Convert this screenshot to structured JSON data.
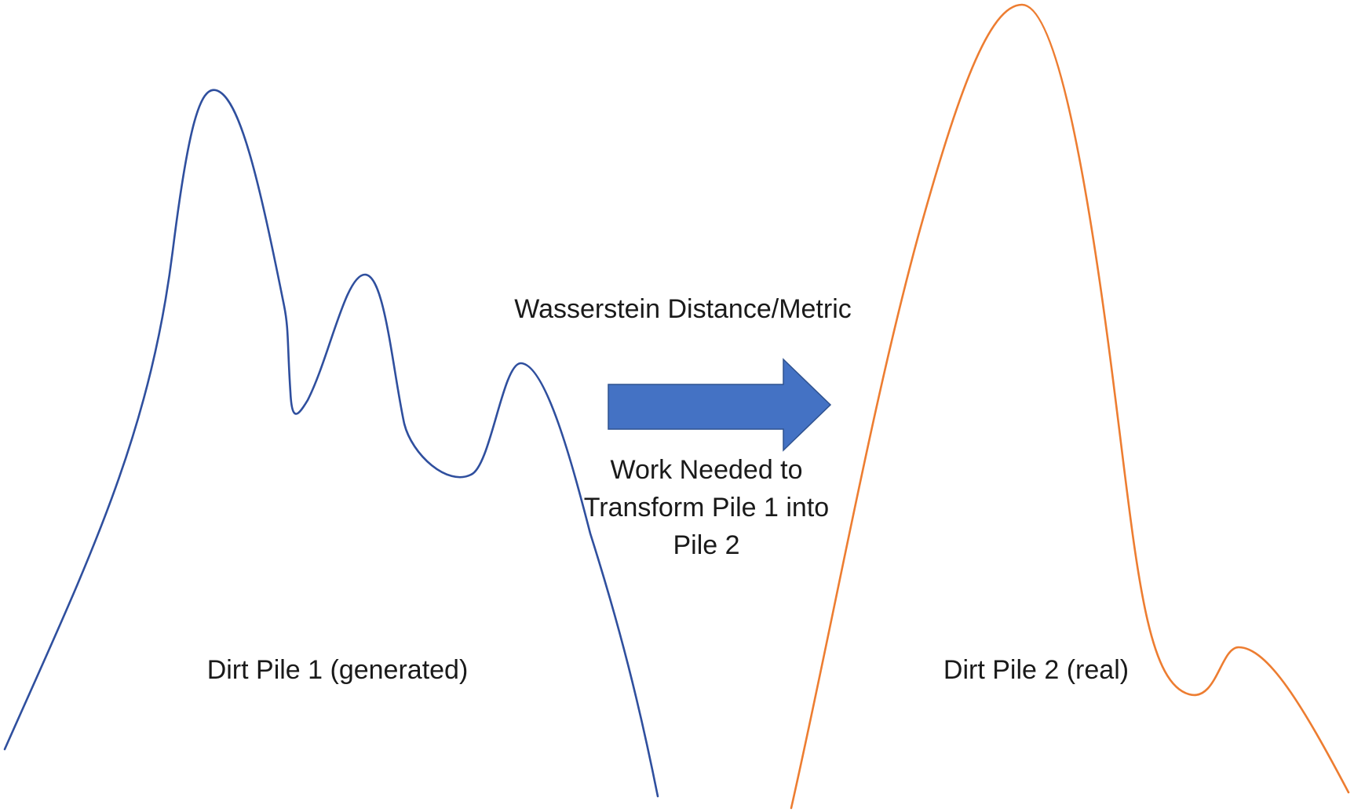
{
  "labels": {
    "pile1": "Dirt Pile 1 (generated)",
    "pile2": "Dirt Pile 2 (real)",
    "metric": "Wasserstein Distance/Metric",
    "work": "Work Needed to Transform Pile 1 into Pile 2"
  },
  "colors": {
    "pile1_curve": "#2f4f9e",
    "pile2_curve": "#ed7d31",
    "arrow_fill": "#4472c4",
    "arrow_stroke": "#2f528f"
  }
}
